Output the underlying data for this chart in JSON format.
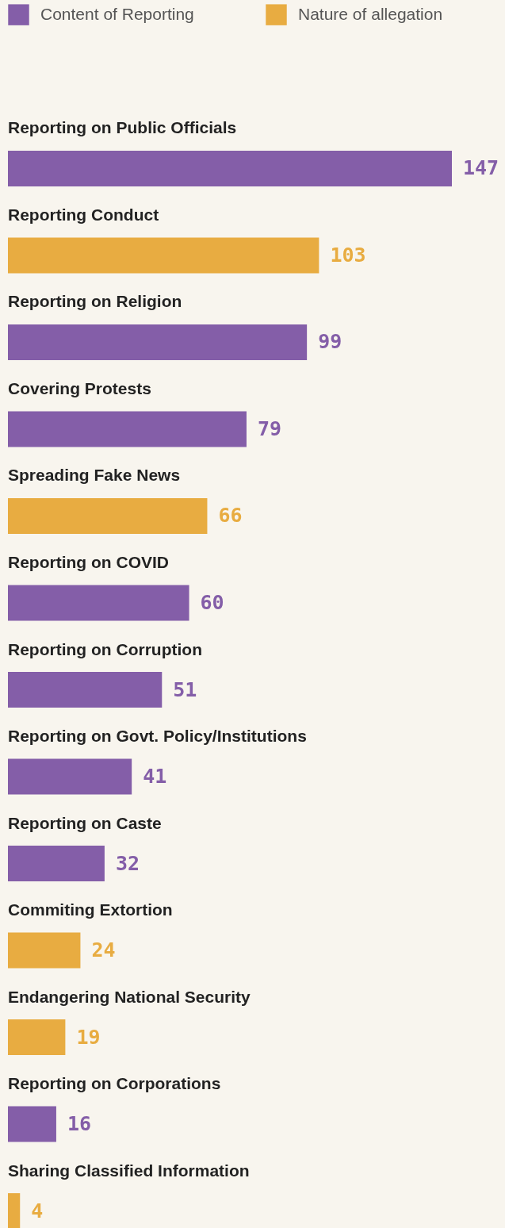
{
  "chart_data": {
    "type": "bar",
    "orientation": "horizontal",
    "data_labels": true,
    "legend": "top left",
    "grid": false,
    "categories": [
      "Reporting on Public Officials",
      "Reporting Conduct",
      "Reporting on Religion",
      "Covering Protests",
      "Spreading Fake News",
      "Reporting on COVID",
      "Reporting on Corruption",
      "Reporting on Govt. Policy/Institutions",
      "Reporting on Caste",
      "Commiting Extortion",
      "Endangering National Security",
      "Reporting on Corporations",
      "Sharing Classified Information"
    ],
    "xlim": [
      0,
      147
    ],
    "series": [
      {
        "name": "Content of Reporting",
        "color": "#845ea8",
        "values": [
          147,
          null,
          99,
          79,
          null,
          60,
          51,
          41,
          32,
          null,
          null,
          16,
          null
        ]
      },
      {
        "name": "Nature of allegation",
        "color": "#e8ac41",
        "values": [
          null,
          103,
          null,
          null,
          66,
          null,
          null,
          null,
          null,
          24,
          19,
          null,
          4
        ]
      }
    ]
  }
}
